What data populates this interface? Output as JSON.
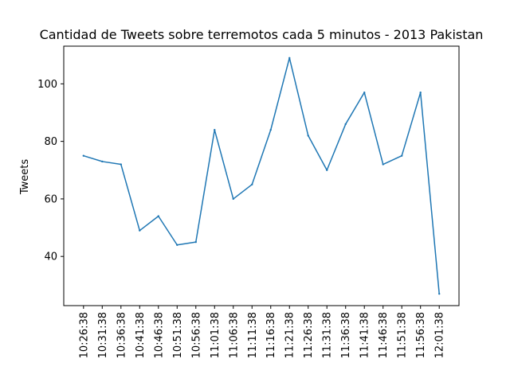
{
  "chart_data": {
    "type": "line",
    "title": "Cantidad de Tweets sobre terremotos cada 5 minutos - 2013 Pakistan",
    "xlabel": "",
    "ylabel": "Tweets",
    "categories": [
      "10:26:38",
      "10:31:38",
      "10:36:38",
      "10:41:38",
      "10:46:38",
      "10:51:38",
      "10:56:38",
      "11:01:38",
      "11:06:38",
      "11:11:38",
      "11:16:38",
      "11:21:38",
      "11:26:38",
      "11:31:38",
      "11:36:38",
      "11:41:38",
      "11:46:38",
      "11:51:38",
      "11:56:38",
      "12:01:38"
    ],
    "series": [
      {
        "values": [
          75,
          73,
          72,
          49,
          54,
          44,
          45,
          84,
          60,
          65,
          84,
          109,
          82,
          70,
          86,
          97,
          72,
          75,
          97,
          27
        ]
      }
    ],
    "ylim": [
      22.9,
      113.1
    ],
    "yticks": [
      40,
      60,
      80,
      100
    ],
    "grid": false,
    "line_color": "#1f77b4"
  }
}
